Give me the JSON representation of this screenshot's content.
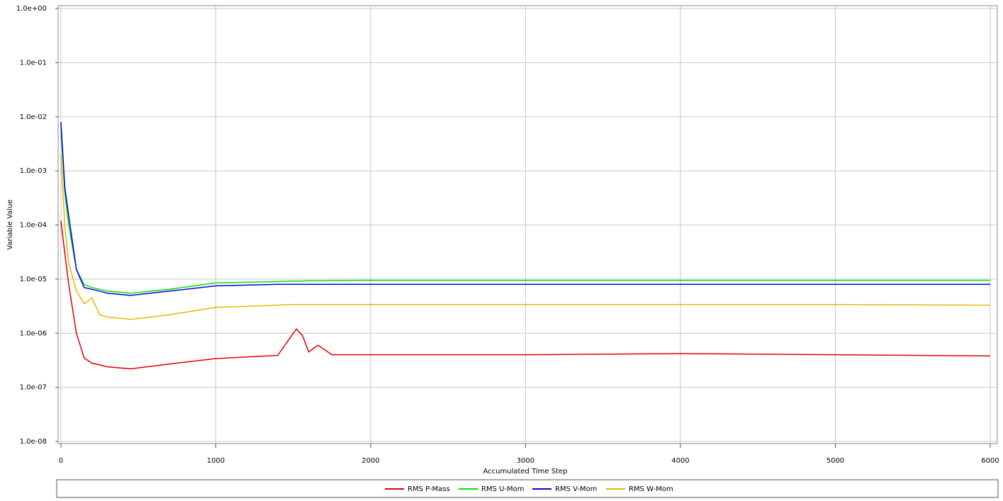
{
  "chart_data": {
    "type": "line",
    "xlabel": "Accumulated Time Step",
    "ylabel": "Variable Value",
    "log_y": true,
    "grid": true,
    "legend": "bottom",
    "xlim": [
      -18,
      6046
    ],
    "ylim": [
      1e-08,
      1
    ],
    "xticks": [
      0,
      1000,
      2000,
      3000,
      4000,
      5000,
      6000
    ],
    "yticks": [
      {
        "value": 1e-08,
        "label": "1.0e-08"
      },
      {
        "value": 1e-07,
        "label": "1.0e-07"
      },
      {
        "value": 1e-06,
        "label": "1.0e-06"
      },
      {
        "value": 1e-05,
        "label": "1.0e-05"
      },
      {
        "value": 0.0001,
        "label": "1.0e-04"
      },
      {
        "value": 0.001,
        "label": "1.0e-03"
      },
      {
        "value": 0.01,
        "label": "1.0e-02"
      },
      {
        "value": 0.1,
        "label": "1.0e-01"
      },
      {
        "value": 1,
        "label": "1.0e+00"
      }
    ],
    "x": [
      0,
      25,
      50,
      100,
      150,
      200,
      250,
      300,
      450,
      700,
      1000,
      1400,
      1500,
      1520,
      1560,
      1600,
      1660,
      1750,
      2000,
      3000,
      4000,
      5000,
      6000
    ],
    "series": [
      {
        "name": "RMS P-Mass",
        "color": "#e00000",
        "values": [
          0.00012,
          3e-05,
          8e-06,
          1e-06,
          3.5e-07,
          2.8e-07,
          2.6e-07,
          2.4e-07,
          2.2e-07,
          2.7e-07,
          3.4e-07,
          3.9e-07,
          1e-06,
          1.2e-06,
          9e-07,
          4.5e-07,
          6e-07,
          4e-07,
          4e-07,
          4e-07,
          4.2e-07,
          4e-07,
          3.8e-07
        ]
      },
      {
        "name": "RMS U-Mom",
        "color": "#00e000",
        "values": [
          0.006,
          0.0004,
          0.0001,
          1.5e-05,
          8e-06,
          7e-06,
          6.5e-06,
          6e-06,
          5.5e-06,
          6.5e-06,
          8.5e-06,
          9e-06,
          9.2e-06,
          9.2e-06,
          9.2e-06,
          9.3e-06,
          9.3e-06,
          9.4e-06,
          9.5e-06,
          9.5e-06,
          9.5e-06,
          9.5e-06,
          9.5e-06
        ]
      },
      {
        "name": "RMS V-Mom",
        "color": "#0000e0",
        "values": [
          0.008,
          0.0005,
          0.00015,
          1.5e-05,
          7e-06,
          6.5e-06,
          6e-06,
          5.5e-06,
          5e-06,
          6e-06,
          7.5e-06,
          8e-06,
          8e-06,
          8e-06,
          8e-06,
          8e-06,
          8e-06,
          8e-06,
          8e-06,
          8e-06,
          8e-06,
          8e-06,
          8e-06
        ]
      },
      {
        "name": "RMS W-Mom",
        "color": "#f0b400",
        "values": [
          0.002,
          0.0001,
          2e-05,
          6e-06,
          3.5e-06,
          4.5e-06,
          2.2e-06,
          2e-06,
          1.8e-06,
          2.2e-06,
          3e-06,
          3.3e-06,
          3.4e-06,
          3.4e-06,
          3.4e-06,
          3.4e-06,
          3.4e-06,
          3.4e-06,
          3.4e-06,
          3.4e-06,
          3.4e-06,
          3.4e-06,
          3.3e-06
        ]
      }
    ]
  }
}
